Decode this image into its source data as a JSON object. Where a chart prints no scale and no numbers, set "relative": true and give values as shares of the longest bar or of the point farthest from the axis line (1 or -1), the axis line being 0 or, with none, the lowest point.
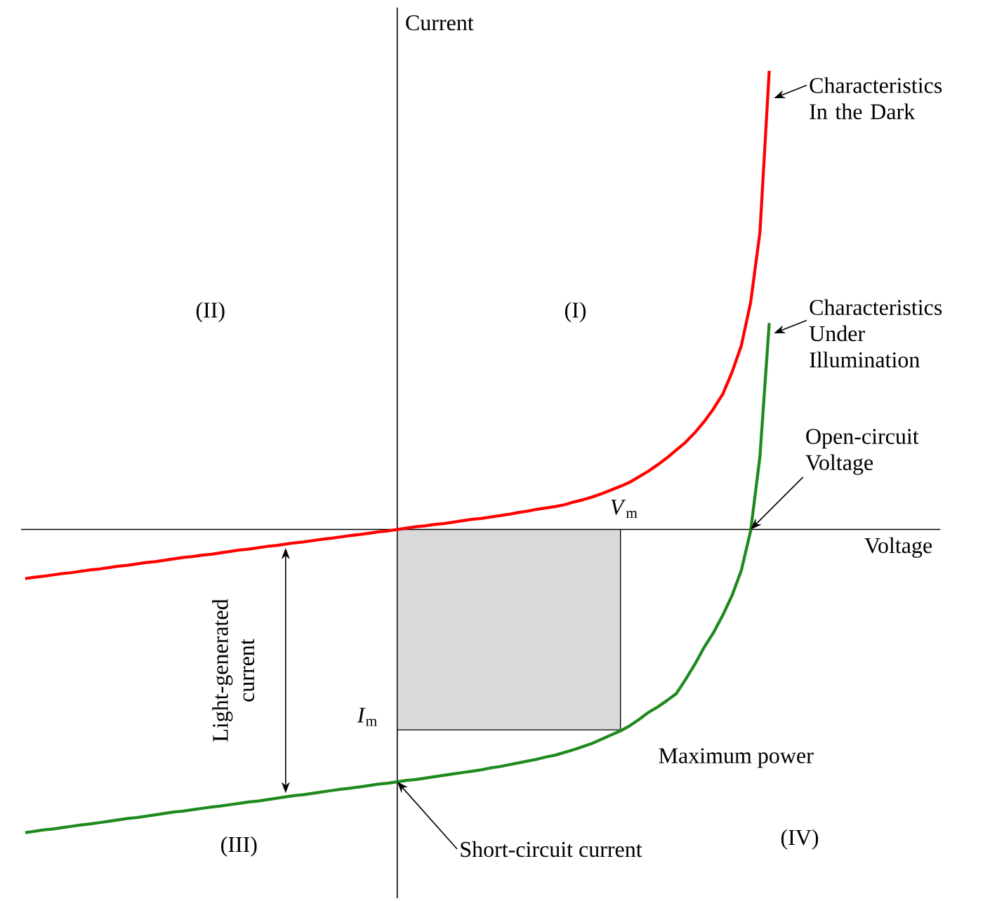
{
  "chart_data": {
    "type": "line",
    "relative": true,
    "xlabel": "Voltage",
    "ylabel": "Current",
    "marker": "none",
    "line_style": "solid",
    "categories": [
      null,
      null,
      null,
      null,
      null,
      null,
      null,
      null,
      null,
      null,
      null,
      null,
      null,
      null,
      null,
      null,
      null,
      null,
      null,
      null,
      null,
      null,
      null,
      null,
      null,
      null,
      null,
      null,
      null,
      null,
      null,
      null,
      null,
      null,
      null,
      null,
      null,
      null,
      null,
      null,
      null,
      null,
      null,
      null,
      null,
      null,
      null,
      null,
      null,
      null,
      null,
      null,
      null,
      null,
      null,
      null,
      null,
      null,
      null,
      null,
      null,
      null,
      null,
      null,
      null,
      null,
      null,
      null,
      null,
      null,
      null,
      null,
      null,
      null,
      null,
      null,
      null,
      null,
      null,
      null,
      null
    ],
    "series": [
      {
        "type": "area",
        "color": "#d9d9d9",
        "values": [
          null,
          null,
          null,
          null,
          null,
          null,
          null,
          null,
          null,
          null,
          null,
          null,
          null,
          null,
          null,
          null,
          null,
          null,
          null,
          null,
          null,
          null,
          null,
          null,
          null,
          null,
          null,
          null,
          null,
          null,
          null,
          null,
          null,
          null,
          null,
          null,
          null,
          null,
          null,
          null,
          -0.437,
          -0.437,
          -0.437,
          -0.437,
          -0.437,
          -0.437,
          -0.437,
          -0.437,
          -0.437,
          -0.437,
          -0.437,
          -0.437,
          -0.437,
          -0.437,
          -0.437,
          -0.437,
          -0.437,
          -0.437,
          -0.437,
          -0.437,
          -0.437,
          -0.437,
          -0.437,
          -0.437,
          -0.437,
          null,
          null,
          null,
          null,
          null,
          null,
          null,
          null,
          null,
          null,
          null,
          null,
          null,
          null,
          null,
          null
        ]
      },
      {
        "color": "#ff0000",
        "values": [
          -0.107,
          -0.104,
          -0.102,
          -0.099,
          -0.096,
          -0.094,
          -0.091,
          -0.088,
          -0.086,
          -0.083,
          -0.08,
          -0.078,
          -0.075,
          -0.072,
          -0.07,
          -0.067,
          -0.064,
          -0.061,
          -0.059,
          -0.056,
          -0.054,
          -0.051,
          -0.048,
          -0.045,
          -0.043,
          -0.04,
          -0.037,
          -0.035,
          -0.032,
          -0.029,
          -0.027,
          -0.024,
          -0.021,
          -0.019,
          -0.016,
          -0.013,
          -0.011,
          -0.008,
          -0.005,
          -0.003,
          0,
          0.003,
          0.006,
          0.008,
          0.011,
          0.013,
          0.016,
          0.019,
          0.022,
          0.024,
          0.027,
          0.03,
          0.033,
          0.037,
          0.04,
          0.044,
          0.047,
          0.05,
          0.054,
          0.06,
          0.065,
          0.071,
          0.078,
          0.086,
          0.094,
          0.103,
          0.115,
          0.127,
          0.141,
          0.156,
          0.173,
          0.19,
          0.211,
          0.235,
          0.263,
          0.295,
          0.343,
          0.401,
          0.495,
          0.648,
          1
        ]
      },
      {
        "color": "#1e8a1e",
        "values": [
          -0.661,
          -0.658,
          -0.655,
          -0.653,
          -0.65,
          -0.647,
          -0.644,
          -0.642,
          -0.639,
          -0.636,
          -0.633,
          -0.63,
          -0.628,
          -0.625,
          -0.622,
          -0.619,
          -0.616,
          -0.614,
          -0.611,
          -0.608,
          -0.605,
          -0.603,
          -0.6,
          -0.597,
          -0.594,
          -0.592,
          -0.589,
          -0.586,
          -0.583,
          -0.58,
          -0.578,
          -0.575,
          -0.572,
          -0.569,
          -0.566,
          -0.564,
          -0.561,
          -0.558,
          -0.555,
          -0.553,
          -0.55,
          -0.547,
          -0.545,
          -0.542,
          -0.539,
          -0.536,
          -0.533,
          -0.53,
          -0.527,
          -0.524,
          -0.52,
          -0.517,
          -0.513,
          -0.509,
          -0.505,
          -0.501,
          -0.496,
          -0.492,
          -0.486,
          -0.48,
          -0.473,
          -0.466,
          -0.457,
          -0.448,
          -0.439,
          -0.428,
          -0.414,
          -0.399,
          -0.387,
          -0.373,
          -0.358,
          -0.327,
          -0.294,
          -0.257,
          -0.225,
          -0.187,
          -0.144,
          -0.089,
          -0.003,
          0.159,
          0.45
        ]
      }
    ],
    "annotations": [
      "(I)",
      "(II)",
      "(III)",
      "(IV)",
      "Characteristics In the Dark",
      "Characteristics Under Illumination",
      "Open-circuit Voltage",
      "Short-circuit current",
      "Maximum power",
      "Light-generated current",
      "*V*$_{m}$",
      "*I*$_{m}$"
    ]
  }
}
